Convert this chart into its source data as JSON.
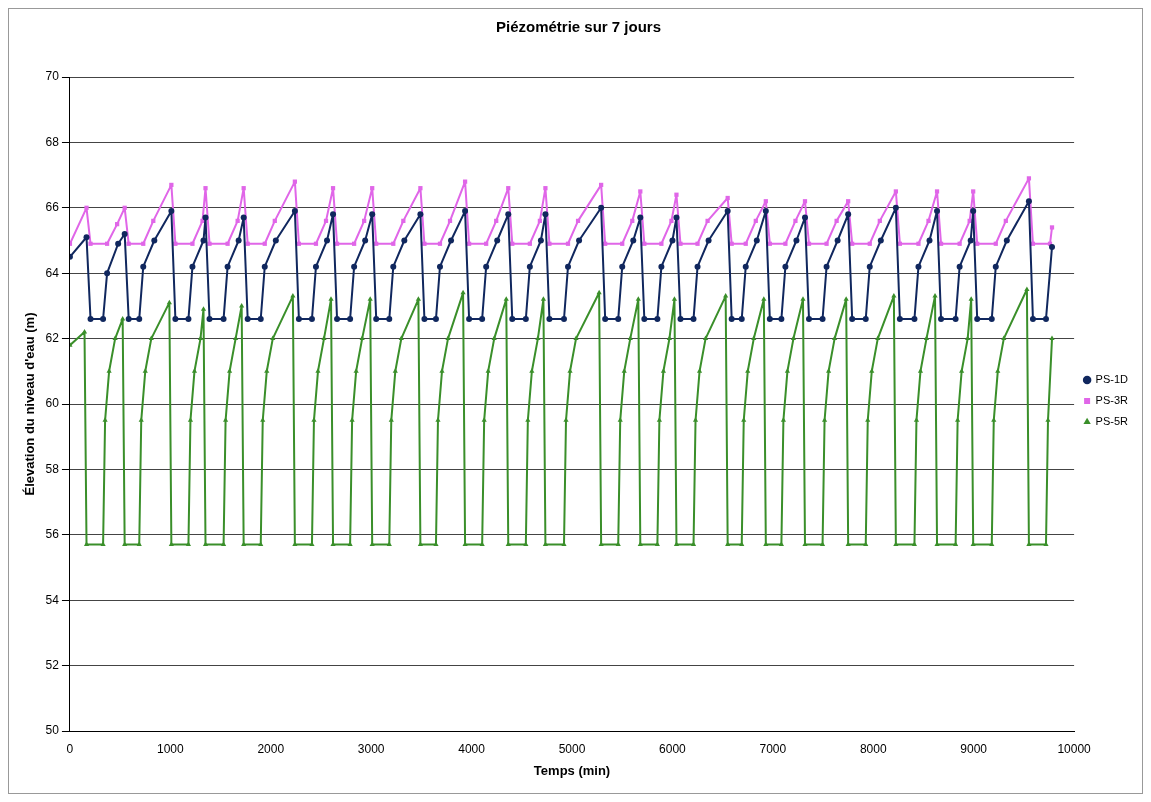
{
  "chart_data": {
    "type": "line",
    "title": "Piézométrie sur 7 jours",
    "xlabel": "Temps (min)",
    "ylabel": "Élevation du niveau d'eau (m)",
    "xlim": [
      0,
      10000
    ],
    "xticks": [
      0,
      1000,
      2000,
      3000,
      4000,
      5000,
      6000,
      7000,
      8000,
      9000,
      10000
    ],
    "ylim": [
      50,
      70
    ],
    "yticks": [
      50,
      52,
      54,
      56,
      58,
      60,
      62,
      64,
      66,
      68,
      70
    ],
    "grid": "y",
    "legend": "right",
    "series": [
      {
        "name": "PS-1D",
        "color": "#10275e",
        "marker": "circle",
        "x": [
          0,
          165,
          205,
          330,
          370,
          480,
          545,
          585,
          690,
          730,
          840,
          1010,
          1050,
          1180,
          1220,
          1330,
          1350,
          1390,
          1530,
          1570,
          1680,
          1730,
          1770,
          1900,
          1940,
          2050,
          2240,
          2280,
          2410,
          2450,
          2560,
          2620,
          2660,
          2790,
          2830,
          2940,
          3010,
          3050,
          3180,
          3220,
          3330,
          3490,
          3530,
          3645,
          3685,
          3795,
          3935,
          3975,
          4105,
          4145,
          4255,
          4365,
          4405,
          4540,
          4580,
          4690,
          4735,
          4775,
          4920,
          4960,
          5070,
          5290,
          5330,
          5460,
          5500,
          5610,
          5680,
          5720,
          5850,
          5890,
          6000,
          6040,
          6080,
          6210,
          6250,
          6360,
          6550,
          6590,
          6690,
          6730,
          6840,
          6930,
          6970,
          7085,
          7125,
          7235,
          7320,
          7360,
          7495,
          7535,
          7645,
          7750,
          7790,
          7925,
          7965,
          8075,
          8225,
          8265,
          8410,
          8450,
          8560,
          8635,
          8675,
          8820,
          8860,
          8970,
          8995,
          9035,
          9180,
          9220,
          9330,
          9550,
          9590,
          9720,
          9780
        ],
        "values": [
          64.5,
          65.1,
          62.6,
          62.6,
          64.0,
          64.9,
          65.2,
          62.6,
          62.6,
          64.2,
          65.0,
          65.9,
          62.6,
          62.6,
          64.2,
          65.0,
          65.7,
          62.6,
          62.6,
          64.2,
          65.0,
          65.7,
          62.6,
          62.6,
          64.2,
          65.0,
          65.9,
          62.6,
          62.6,
          64.2,
          65.0,
          65.8,
          62.6,
          62.6,
          64.2,
          65.0,
          65.8,
          62.6,
          62.6,
          64.2,
          65.0,
          65.8,
          62.6,
          62.6,
          64.2,
          65.0,
          65.9,
          62.6,
          62.6,
          64.2,
          65.0,
          65.8,
          62.6,
          62.6,
          64.2,
          65.0,
          65.8,
          62.6,
          62.6,
          64.2,
          65.0,
          66.0,
          62.6,
          62.6,
          64.2,
          65.0,
          65.7,
          62.6,
          62.6,
          64.2,
          65.0,
          65.7,
          62.6,
          62.6,
          64.2,
          65.0,
          65.9,
          62.6,
          62.6,
          64.2,
          65.0,
          65.9,
          62.6,
          62.6,
          64.2,
          65.0,
          65.7,
          62.6,
          62.6,
          64.2,
          65.0,
          65.8,
          62.6,
          62.6,
          64.2,
          65.0,
          66.0,
          62.6,
          62.6,
          64.2,
          65.0,
          65.9,
          62.6,
          62.6,
          64.2,
          65.0,
          65.9,
          62.6,
          62.6,
          64.2,
          65.0,
          66.2,
          62.6,
          62.6,
          64.8
        ]
      },
      {
        "name": "PS-3R",
        "color": "#e066e8",
        "marker": "square",
        "x": [
          0,
          165,
          205,
          370,
          470,
          545,
          585,
          730,
          830,
          1010,
          1050,
          1220,
          1320,
          1350,
          1390,
          1570,
          1670,
          1730,
          1770,
          1940,
          2040,
          2240,
          2280,
          2450,
          2550,
          2620,
          2660,
          2830,
          2930,
          3010,
          3050,
          3220,
          3320,
          3490,
          3530,
          3685,
          3785,
          3935,
          3975,
          4145,
          4245,
          4365,
          4405,
          4580,
          4680,
          4735,
          4775,
          4960,
          5060,
          5290,
          5330,
          5500,
          5600,
          5680,
          5720,
          5890,
          5990,
          6040,
          6080,
          6250,
          6350,
          6550,
          6590,
          6730,
          6830,
          6930,
          6970,
          7125,
          7225,
          7320,
          7360,
          7535,
          7635,
          7750,
          7790,
          7965,
          8065,
          8225,
          8265,
          8450,
          8550,
          8635,
          8675,
          8860,
          8960,
          8995,
          9035,
          9220,
          9320,
          9550,
          9590,
          9760,
          9780
        ],
        "values": [
          64.9,
          66.0,
          64.9,
          64.9,
          65.5,
          66.0,
          64.9,
          64.9,
          65.6,
          66.7,
          64.9,
          64.9,
          65.6,
          66.6,
          64.9,
          64.9,
          65.6,
          66.6,
          64.9,
          64.9,
          65.6,
          66.8,
          64.9,
          64.9,
          65.6,
          66.6,
          64.9,
          64.9,
          65.6,
          66.6,
          64.9,
          64.9,
          65.6,
          66.6,
          64.9,
          64.9,
          65.6,
          66.8,
          64.9,
          64.9,
          65.6,
          66.6,
          64.9,
          64.9,
          65.6,
          66.6,
          64.9,
          64.9,
          65.6,
          66.7,
          64.9,
          64.9,
          65.6,
          66.5,
          64.9,
          64.9,
          65.6,
          66.4,
          64.9,
          64.9,
          65.6,
          66.3,
          64.9,
          64.9,
          65.6,
          66.2,
          64.9,
          64.9,
          65.6,
          66.2,
          64.9,
          64.9,
          65.6,
          66.2,
          64.9,
          64.9,
          65.6,
          66.5,
          64.9,
          64.9,
          65.6,
          66.5,
          64.9,
          64.9,
          65.6,
          66.5,
          64.9,
          64.9,
          65.6,
          66.9,
          64.9,
          64.9,
          65.4
        ]
      },
      {
        "name": "PS-5R",
        "color": "#3a8f2a",
        "marker": "triangle",
        "x": [
          0,
          145,
          165,
          330,
          350,
          390,
          450,
          525,
          545,
          690,
          710,
          750,
          810,
          990,
          1010,
          1180,
          1200,
          1240,
          1300,
          1330,
          1350,
          1530,
          1550,
          1590,
          1650,
          1710,
          1730,
          1900,
          1920,
          1960,
          2020,
          2220,
          2240,
          2410,
          2430,
          2470,
          2530,
          2600,
          2620,
          2790,
          2810,
          2850,
          2910,
          2990,
          3010,
          3180,
          3200,
          3240,
          3300,
          3470,
          3490,
          3645,
          3665,
          3705,
          3765,
          3915,
          3935,
          4105,
          4125,
          4165,
          4225,
          4345,
          4365,
          4540,
          4560,
          4600,
          4660,
          4715,
          4735,
          4920,
          4940,
          4980,
          5040,
          5270,
          5290,
          5460,
          5480,
          5520,
          5580,
          5660,
          5680,
          5850,
          5870,
          5910,
          5970,
          6020,
          6040,
          6210,
          6230,
          6270,
          6330,
          6530,
          6550,
          6690,
          6710,
          6750,
          6810,
          6910,
          6930,
          7085,
          7105,
          7145,
          7205,
          7300,
          7320,
          7495,
          7515,
          7555,
          7615,
          7730,
          7750,
          7925,
          7945,
          7985,
          8045,
          8205,
          8225,
          8410,
          8430,
          8470,
          8530,
          8615,
          8635,
          8820,
          8840,
          8880,
          8940,
          8975,
          8995,
          9180,
          9200,
          9240,
          9300,
          9530,
          9550,
          9720,
          9740,
          9780
        ],
        "values": [
          61.8,
          62.2,
          55.7,
          55.7,
          59.5,
          61.0,
          62.0,
          62.6,
          55.7,
          55.7,
          59.5,
          61.0,
          62.0,
          63.1,
          55.7,
          55.7,
          59.5,
          61.0,
          62.0,
          62.9,
          55.7,
          55.7,
          59.5,
          61.0,
          62.0,
          63.0,
          55.7,
          55.7,
          59.5,
          61.0,
          62.0,
          63.3,
          55.7,
          55.7,
          59.5,
          61.0,
          62.0,
          63.2,
          55.7,
          55.7,
          59.5,
          61.0,
          62.0,
          63.2,
          55.7,
          55.7,
          59.5,
          61.0,
          62.0,
          63.2,
          55.7,
          55.7,
          59.5,
          61.0,
          62.0,
          63.4,
          55.7,
          55.7,
          59.5,
          61.0,
          62.0,
          63.2,
          55.7,
          55.7,
          59.5,
          61.0,
          62.0,
          63.2,
          55.7,
          55.7,
          59.5,
          61.0,
          62.0,
          63.4,
          55.7,
          55.7,
          59.5,
          61.0,
          62.0,
          63.2,
          55.7,
          55.7,
          59.5,
          61.0,
          62.0,
          63.2,
          55.7,
          55.7,
          59.5,
          61.0,
          62.0,
          63.3,
          55.7,
          55.7,
          59.5,
          61.0,
          62.0,
          63.2,
          55.7,
          55.7,
          59.5,
          61.0,
          62.0,
          63.2,
          55.7,
          55.7,
          59.5,
          61.0,
          62.0,
          63.2,
          55.7,
          55.7,
          59.5,
          61.0,
          62.0,
          63.3,
          55.7,
          55.7,
          59.5,
          61.0,
          62.0,
          63.3,
          55.7,
          55.7,
          59.5,
          61.0,
          62.0,
          63.2,
          55.7,
          55.7,
          59.5,
          61.0,
          62.0,
          63.5,
          55.7,
          55.7,
          59.5,
          62.0
        ]
      }
    ]
  }
}
